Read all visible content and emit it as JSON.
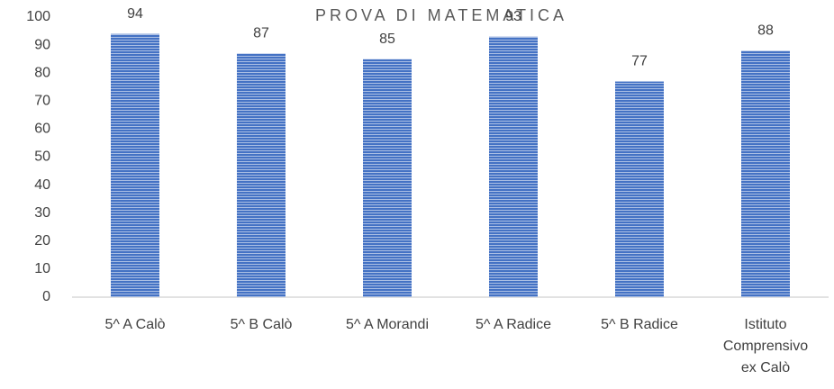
{
  "chart_data": {
    "type": "bar",
    "title": "PROVA DI MATEMATICA",
    "categories": [
      "5^ A Calò",
      "5^ B Calò",
      "5^ A Morandi",
      "5^ A Radice",
      "5^ B Radice",
      "Istituto Comprensivo ex Calò"
    ],
    "values": [
      94,
      87,
      85,
      93,
      77,
      88
    ],
    "color": "#4472c4",
    "ylim": [
      0,
      100
    ],
    "yticks": [
      0,
      10,
      20,
      30,
      40,
      50,
      60,
      70,
      80,
      90,
      100
    ],
    "grid": false
  }
}
